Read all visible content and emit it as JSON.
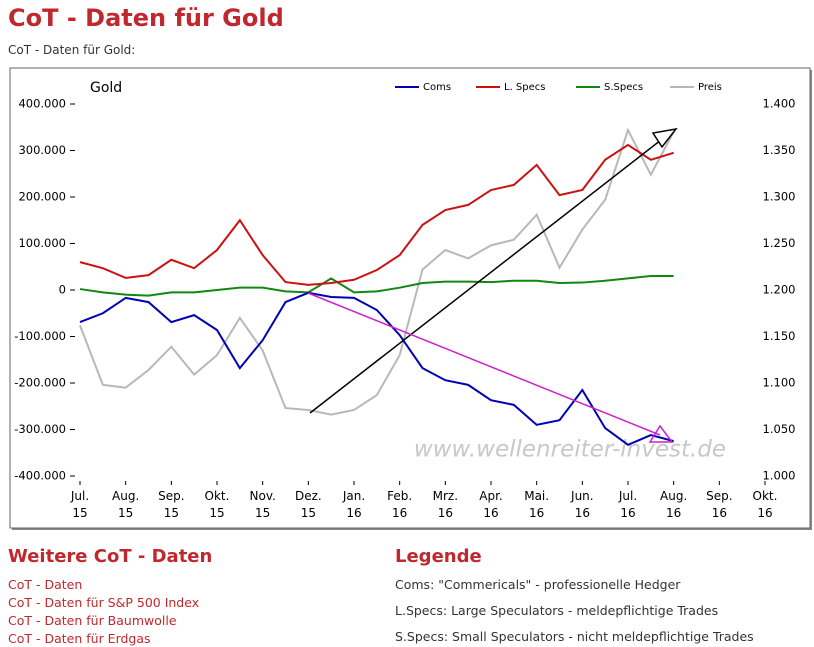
{
  "header": {
    "title": "CoT - Daten für Gold",
    "subtitle": "CoT - Daten für Gold:"
  },
  "chart_data": {
    "type": "line",
    "title": "Gold",
    "watermark": "www.wellenreiter-invest.de",
    "grid": false,
    "x": [
      0,
      0.5,
      1,
      1.5,
      2,
      2.5,
      3,
      3.5,
      4,
      4.5,
      5,
      5.5,
      6,
      6.5,
      7,
      7.5,
      8,
      8.5,
      9,
      9.5,
      10,
      10.5,
      11,
      11.5,
      12,
      12.5,
      13
    ],
    "xlim": [
      0,
      15
    ],
    "xticks": [
      {
        "value": 0,
        "label": "Jul.\n15"
      },
      {
        "value": 1,
        "label": "Aug.\n15"
      },
      {
        "value": 2,
        "label": "Sep.\n15"
      },
      {
        "value": 3,
        "label": "Okt.\n15"
      },
      {
        "value": 4,
        "label": "Nov.\n15"
      },
      {
        "value": 5,
        "label": "Dez.\n15"
      },
      {
        "value": 6,
        "label": "Jan.\n16"
      },
      {
        "value": 7,
        "label": "Feb.\n16"
      },
      {
        "value": 8,
        "label": "Mrz.\n16"
      },
      {
        "value": 9,
        "label": "Apr.\n16"
      },
      {
        "value": 10,
        "label": "Mai.\n16"
      },
      {
        "value": 11,
        "label": "Jun.\n16"
      },
      {
        "value": 12,
        "label": "Jul.\n16"
      },
      {
        "value": 13,
        "label": "Aug.\n16"
      },
      {
        "value": 14,
        "label": "Sep.\n16"
      },
      {
        "value": 15,
        "label": "Okt.\n16"
      }
    ],
    "ylim": [
      -400000,
      400000
    ],
    "yticks": [
      {
        "value": 400000,
        "label": "400.000"
      },
      {
        "value": 300000,
        "label": "300.000"
      },
      {
        "value": 200000,
        "label": "200.000"
      },
      {
        "value": 100000,
        "label": "100.000"
      },
      0,
      {
        "value": -100000,
        "label": "-100.000"
      },
      {
        "value": -200000,
        "label": "-200.000"
      },
      {
        "value": -300000,
        "label": "-300.000"
      },
      {
        "value": -400000,
        "label": "-400.000"
      }
    ],
    "y2lim": [
      1.0,
      1.4
    ],
    "y2ticks": [
      {
        "value": 1.4,
        "label": "1.400"
      },
      {
        "value": 1.35,
        "label": "1.350"
      },
      {
        "value": 1.3,
        "label": "1.300"
      },
      {
        "value": 1.25,
        "label": "1.250"
      },
      {
        "value": 1.2,
        "label": "1.200"
      },
      {
        "value": 1.15,
        "label": "1.150"
      },
      {
        "value": 1.1,
        "label": "1.100"
      },
      {
        "value": 1.05,
        "label": "1.050"
      },
      {
        "value": 1.0,
        "label": "1.000"
      }
    ],
    "series": [
      {
        "name": "Coms",
        "color": "#0000b4",
        "values": [
          -69000,
          -50000,
          -17000,
          -26000,
          -69000,
          -54000,
          -86000,
          -168000,
          -108000,
          -26000,
          -6000,
          -15000,
          -17000,
          -43000,
          -97000,
          -168000,
          -194000,
          -204000,
          -237000,
          -247000,
          -290000,
          -280000,
          -215000,
          -297000,
          -333000,
          -312000,
          -325000
        ]
      },
      {
        "name": "L. Specs",
        "color": "#cc1111",
        "values": [
          60000,
          47000,
          26000,
          32000,
          65000,
          47000,
          86000,
          150000,
          75000,
          17000,
          11000,
          15000,
          22000,
          43000,
          75000,
          140000,
          172000,
          183000,
          215000,
          226000,
          269000,
          204000,
          215000,
          280000,
          312000,
          280000,
          295000
        ]
      },
      {
        "name": "S.Specs",
        "color": "#118811",
        "values": [
          2000,
          -5000,
          -10000,
          -12000,
          -5000,
          -5000,
          0,
          5000,
          5000,
          -3000,
          -5000,
          25000,
          -5000,
          -3000,
          5000,
          15000,
          18000,
          18000,
          17000,
          20000,
          20000,
          15000,
          16000,
          20000,
          25000,
          30000,
          30000
        ]
      },
      {
        "name": "Preis",
        "color": "#b8b8b8",
        "axis": "y2",
        "values": [
          1.162,
          1.098,
          1.095,
          1.114,
          1.139,
          1.109,
          1.13,
          1.17,
          1.135,
          1.073,
          1.071,
          1.066,
          1.071,
          1.087,
          1.13,
          1.222,
          1.243,
          1.234,
          1.248,
          1.254,
          1.281,
          1.224,
          1.265,
          1.297,
          1.372,
          1.324,
          1.37
        ]
      }
    ]
  },
  "links": {
    "title": "Weitere CoT - Daten",
    "items": [
      "CoT - Daten",
      "CoT - Daten für S&P 500 Index",
      "CoT - Daten für Baumwolle",
      "CoT - Daten für Erdgas"
    ]
  },
  "legend": {
    "title": "Legende",
    "items": [
      "Coms: \"Commericals\" - professionelle Hedger",
      "L.Specs: Large Speculators - meldepflichtige Trades",
      "S.Specs: Small Speculators - nicht meldepflichtige Trades"
    ]
  }
}
